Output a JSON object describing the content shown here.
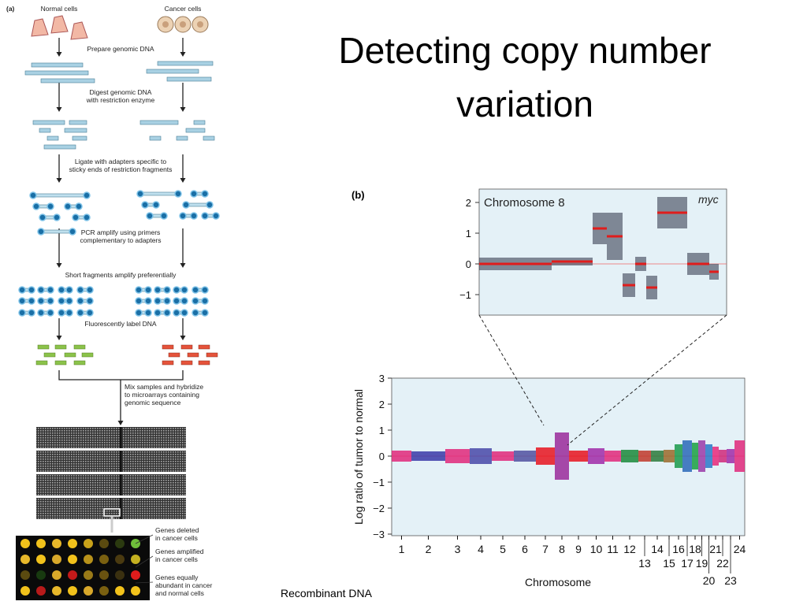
{
  "title": [
    "Detecting copy number",
    "variation"
  ],
  "footer": "Recombinant DNA",
  "panel_a": {
    "label": "(a)",
    "normal": "Normal cells",
    "cancer": "Cancer cells",
    "steps": [
      [
        "Prepare genomic DNA"
      ],
      [
        "Digest genomic DNA",
        "with restriction enzyme"
      ],
      [
        "Ligate with adapters specific to",
        "sticky ends of restriction fragments"
      ],
      [
        "PCR amplify using primers",
        "complementary to adapters"
      ],
      [
        "Short fragments amplify preferentially"
      ],
      [
        "Fluorescently label DNA"
      ],
      [
        "Mix samples and hybridize",
        "to microarrays containing",
        "genomic sequence"
      ]
    ],
    "legend": [
      [
        "Genes deleted",
        "in cancer cells"
      ],
      [
        "Genes amplified",
        "in cancer cells"
      ],
      [
        "Genes equally",
        "abundant in cancer",
        "and normal cells"
      ]
    ]
  },
  "panel_b": {
    "label": "(b)",
    "inset": {
      "title": "Chromosome 8",
      "annotation": "myc",
      "yticks": [
        "2",
        "1",
        "0",
        "−1"
      ]
    },
    "main": {
      "ylabel": "Log ratio of tumor to normal",
      "xlabel": "Chromosome",
      "yticks": [
        "3",
        "2",
        "1",
        "0",
        "−1",
        "−2",
        "−3"
      ],
      "chromosomes": [
        "1",
        "2",
        "3",
        "4",
        "5",
        "6",
        "7",
        "8",
        "9",
        "10",
        "11",
        "12",
        "13",
        "14",
        "15",
        "16",
        "17",
        "18",
        "19",
        "20",
        "21",
        "22",
        "23",
        "24"
      ]
    }
  }
}
